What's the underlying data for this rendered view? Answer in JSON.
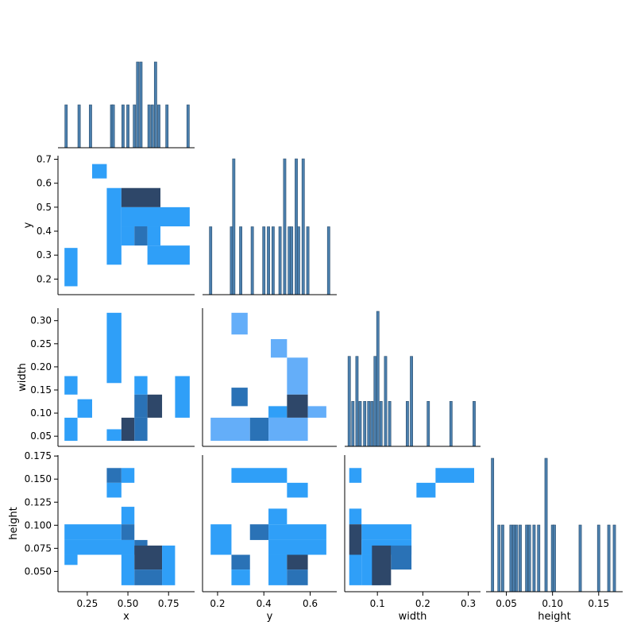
{
  "chart_data": {
    "type": "pairgrid",
    "layout": "corner",
    "variables": [
      "x",
      "y",
      "width",
      "height"
    ],
    "colors": {
      "hist_bar": "#4b7fad",
      "hist_edge": "#2d4f6e",
      "bin_light": "#64aef9",
      "bin_mid": "#2f9ff8",
      "bin_dark": "#2a72b6",
      "bin_darkest": "#2e4769"
    },
    "axis_labels": {
      "x": "x",
      "y": "y",
      "width": "width",
      "height": "height"
    },
    "ticks": {
      "x": {
        "values": [
          0.25,
          0.5,
          0.75
        ],
        "labels": [
          "0.25",
          "0.50",
          "0.75"
        ]
      },
      "y": {
        "values": [
          0.2,
          0.3,
          0.4,
          0.5,
          0.6,
          0.7
        ],
        "labels": [
          "0.2",
          "0.3",
          "0.4",
          "0.5",
          "0.6",
          "0.7"
        ],
        "x_values": [
          0.2,
          0.4,
          0.6
        ],
        "x_labels": [
          "0.2",
          "0.4",
          "0.6"
        ]
      },
      "width": {
        "values": [
          0.05,
          0.1,
          0.15,
          0.2,
          0.25,
          0.3
        ],
        "labels": [
          "0.05",
          "0.10",
          "0.15",
          "0.20",
          "0.25",
          "0.30"
        ],
        "x_values": [
          0.1,
          0.2,
          0.3
        ],
        "x_labels": [
          "0.1",
          "0.2",
          "0.3"
        ]
      },
      "height": {
        "values": [
          0.05,
          0.075,
          0.1,
          0.125,
          0.15,
          0.175
        ],
        "labels": [
          "0.050",
          "0.075",
          "0.100",
          "0.125",
          "0.150",
          "0.175"
        ],
        "x_values": [
          0.05,
          0.1,
          0.15
        ],
        "x_labels": [
          "0.05",
          "0.10",
          "0.15"
        ]
      }
    },
    "ranges": {
      "x": [
        0.07,
        0.91
      ],
      "y": [
        0.135,
        0.715
      ],
      "width": [
        0.028,
        0.327
      ],
      "height": [
        0.028,
        0.176
      ]
    },
    "diagonal_histograms": {
      "x": [
        {
          "x": 0.12,
          "count": 1
        },
        {
          "x": 0.2,
          "count": 1
        },
        {
          "x": 0.27,
          "count": 1
        },
        {
          "x": 0.4,
          "count": 1
        },
        {
          "x": 0.41,
          "count": 1
        },
        {
          "x": 0.47,
          "count": 1
        },
        {
          "x": 0.5,
          "count": 1
        },
        {
          "x": 0.54,
          "count": 1
        },
        {
          "x": 0.56,
          "count": 2
        },
        {
          "x": 0.58,
          "count": 2
        },
        {
          "x": 0.63,
          "count": 1
        },
        {
          "x": 0.65,
          "count": 1
        },
        {
          "x": 0.67,
          "count": 2
        },
        {
          "x": 0.69,
          "count": 1
        },
        {
          "x": 0.74,
          "count": 1
        },
        {
          "x": 0.87,
          "count": 1
        }
      ],
      "y": [
        {
          "x": 0.17,
          "count": 1
        },
        {
          "x": 0.26,
          "count": 1
        },
        {
          "x": 0.27,
          "count": 2
        },
        {
          "x": 0.3,
          "count": 1
        },
        {
          "x": 0.35,
          "count": 1
        },
        {
          "x": 0.4,
          "count": 1
        },
        {
          "x": 0.42,
          "count": 1
        },
        {
          "x": 0.44,
          "count": 1
        },
        {
          "x": 0.47,
          "count": 1
        },
        {
          "x": 0.49,
          "count": 2
        },
        {
          "x": 0.51,
          "count": 1
        },
        {
          "x": 0.52,
          "count": 1
        },
        {
          "x": 0.54,
          "count": 2
        },
        {
          "x": 0.55,
          "count": 1
        },
        {
          "x": 0.57,
          "count": 2
        },
        {
          "x": 0.59,
          "count": 1
        },
        {
          "x": 0.68,
          "count": 1
        }
      ],
      "width": [
        {
          "x": 0.038,
          "count": 2
        },
        {
          "x": 0.046,
          "count": 1
        },
        {
          "x": 0.055,
          "count": 2
        },
        {
          "x": 0.062,
          "count": 1
        },
        {
          "x": 0.072,
          "count": 1
        },
        {
          "x": 0.081,
          "count": 1
        },
        {
          "x": 0.088,
          "count": 1
        },
        {
          "x": 0.095,
          "count": 2
        },
        {
          "x": 0.101,
          "count": 3
        },
        {
          "x": 0.108,
          "count": 1
        },
        {
          "x": 0.118,
          "count": 2
        },
        {
          "x": 0.127,
          "count": 1
        },
        {
          "x": 0.166,
          "count": 1
        },
        {
          "x": 0.175,
          "count": 2
        },
        {
          "x": 0.212,
          "count": 1
        },
        {
          "x": 0.262,
          "count": 1
        },
        {
          "x": 0.313,
          "count": 1
        }
      ],
      "height": [
        {
          "x": 0.035,
          "count": 2
        },
        {
          "x": 0.042,
          "count": 1
        },
        {
          "x": 0.046,
          "count": 1
        },
        {
          "x": 0.055,
          "count": 1
        },
        {
          "x": 0.058,
          "count": 1
        },
        {
          "x": 0.061,
          "count": 1
        },
        {
          "x": 0.065,
          "count": 1
        },
        {
          "x": 0.072,
          "count": 1
        },
        {
          "x": 0.075,
          "count": 1
        },
        {
          "x": 0.08,
          "count": 1
        },
        {
          "x": 0.085,
          "count": 1
        },
        {
          "x": 0.093,
          "count": 2
        },
        {
          "x": 0.1,
          "count": 1
        },
        {
          "x": 0.102,
          "count": 1
        },
        {
          "x": 0.13,
          "count": 1
        },
        {
          "x": 0.15,
          "count": 1
        },
        {
          "x": 0.161,
          "count": 1
        },
        {
          "x": 0.167,
          "count": 1
        }
      ]
    },
    "bivariate_histograms": [
      {
        "x_var": "x",
        "y_var": "y",
        "cells": [
          {
            "x0": 0.11,
            "x1": 0.19,
            "y0": 0.17,
            "y1": 0.33,
            "level": "mid"
          },
          {
            "x0": 0.28,
            "x1": 0.37,
            "y0": 0.62,
            "y1": 0.68,
            "level": "mid"
          },
          {
            "x0": 0.37,
            "x1": 0.46,
            "y0": 0.26,
            "y1": 0.58,
            "level": "mid"
          },
          {
            "x0": 0.46,
            "x1": 0.7,
            "y0": 0.5,
            "y1": 0.58,
            "level": "darkest"
          },
          {
            "x0": 0.46,
            "x1": 0.88,
            "y0": 0.42,
            "y1": 0.5,
            "level": "mid"
          },
          {
            "x0": 0.46,
            "x1": 0.54,
            "y0": 0.34,
            "y1": 0.42,
            "level": "mid"
          },
          {
            "x0": 0.54,
            "x1": 0.62,
            "y0": 0.34,
            "y1": 0.42,
            "level": "dark"
          },
          {
            "x0": 0.62,
            "x1": 0.7,
            "y0": 0.34,
            "y1": 0.42,
            "level": "mid"
          },
          {
            "x0": 0.62,
            "x1": 0.88,
            "y0": 0.26,
            "y1": 0.34,
            "level": "mid"
          }
        ]
      },
      {
        "x_var": "x",
        "y_var": "width",
        "cells": [
          {
            "x0": 0.37,
            "x1": 0.46,
            "y0": 0.165,
            "y1": 0.317,
            "level": "mid"
          },
          {
            "x0": 0.11,
            "x1": 0.19,
            "y0": 0.14,
            "y1": 0.18,
            "level": "mid"
          },
          {
            "x0": 0.54,
            "x1": 0.62,
            "y0": 0.14,
            "y1": 0.18,
            "level": "mid"
          },
          {
            "x0": 0.79,
            "x1": 0.88,
            "y0": 0.09,
            "y1": 0.18,
            "level": "mid"
          },
          {
            "x0": 0.19,
            "x1": 0.28,
            "y0": 0.09,
            "y1": 0.13,
            "level": "mid"
          },
          {
            "x0": 0.54,
            "x1": 0.62,
            "y0": 0.09,
            "y1": 0.14,
            "level": "dark"
          },
          {
            "x0": 0.62,
            "x1": 0.71,
            "y0": 0.09,
            "y1": 0.14,
            "level": "darkest"
          },
          {
            "x0": 0.11,
            "x1": 0.19,
            "y0": 0.04,
            "y1": 0.09,
            "level": "mid"
          },
          {
            "x0": 0.37,
            "x1": 0.46,
            "y0": 0.04,
            "y1": 0.065,
            "level": "mid"
          },
          {
            "x0": 0.46,
            "x1": 0.54,
            "y0": 0.04,
            "y1": 0.09,
            "level": "darkest"
          },
          {
            "x0": 0.54,
            "x1": 0.62,
            "y0": 0.04,
            "y1": 0.09,
            "level": "dark"
          }
        ]
      },
      {
        "x_var": "y",
        "y_var": "width",
        "cells": [
          {
            "x0": 0.26,
            "x1": 0.33,
            "y0": 0.27,
            "y1": 0.317,
            "level": "light"
          },
          {
            "x0": 0.43,
            "x1": 0.5,
            "y0": 0.22,
            "y1": 0.26,
            "level": "light"
          },
          {
            "x0": 0.5,
            "x1": 0.59,
            "y0": 0.14,
            "y1": 0.22,
            "level": "light"
          },
          {
            "x0": 0.26,
            "x1": 0.33,
            "y0": 0.115,
            "y1": 0.155,
            "level": "dark"
          },
          {
            "x0": 0.42,
            "x1": 0.5,
            "y0": 0.09,
            "y1": 0.115,
            "level": "mid"
          },
          {
            "x0": 0.5,
            "x1": 0.59,
            "y0": 0.09,
            "y1": 0.14,
            "level": "darkest"
          },
          {
            "x0": 0.59,
            "x1": 0.67,
            "y0": 0.09,
            "y1": 0.115,
            "level": "light"
          },
          {
            "x0": 0.17,
            "x1": 0.34,
            "y0": 0.04,
            "y1": 0.09,
            "level": "light"
          },
          {
            "x0": 0.34,
            "x1": 0.42,
            "y0": 0.04,
            "y1": 0.09,
            "level": "dark"
          },
          {
            "x0": 0.42,
            "x1": 0.59,
            "y0": 0.04,
            "y1": 0.09,
            "level": "light"
          }
        ]
      },
      {
        "x_var": "x",
        "y_var": "height",
        "cells": [
          {
            "x0": 0.37,
            "x1": 0.46,
            "y0": 0.146,
            "y1": 0.162,
            "level": "dark"
          },
          {
            "x0": 0.46,
            "x1": 0.54,
            "y0": 0.146,
            "y1": 0.162,
            "level": "mid"
          },
          {
            "x0": 0.37,
            "x1": 0.46,
            "y0": 0.13,
            "y1": 0.146,
            "level": "mid"
          },
          {
            "x0": 0.46,
            "x1": 0.54,
            "y0": 0.101,
            "y1": 0.12,
            "level": "mid"
          },
          {
            "x0": 0.11,
            "x1": 0.46,
            "y0": 0.084,
            "y1": 0.101,
            "level": "mid"
          },
          {
            "x0": 0.46,
            "x1": 0.54,
            "y0": 0.084,
            "y1": 0.101,
            "level": "dark"
          },
          {
            "x0": 0.11,
            "x1": 0.54,
            "y0": 0.068,
            "y1": 0.084,
            "level": "mid"
          },
          {
            "x0": 0.54,
            "x1": 0.62,
            "y0": 0.068,
            "y1": 0.084,
            "level": "dark"
          },
          {
            "x0": 0.11,
            "x1": 0.19,
            "y0": 0.057,
            "y1": 0.068,
            "level": "mid"
          },
          {
            "x0": 0.46,
            "x1": 0.54,
            "y0": 0.035,
            "y1": 0.068,
            "level": "mid"
          },
          {
            "x0": 0.54,
            "x1": 0.71,
            "y0": 0.052,
            "y1": 0.078,
            "level": "darkest"
          },
          {
            "x0": 0.54,
            "x1": 0.71,
            "y0": 0.035,
            "y1": 0.052,
            "level": "dark"
          },
          {
            "x0": 0.71,
            "x1": 0.79,
            "y0": 0.035,
            "y1": 0.078,
            "level": "mid"
          }
        ]
      },
      {
        "x_var": "y",
        "y_var": "height",
        "cells": [
          {
            "x0": 0.26,
            "x1": 0.5,
            "y0": 0.146,
            "y1": 0.162,
            "level": "mid"
          },
          {
            "x0": 0.5,
            "x1": 0.59,
            "y0": 0.13,
            "y1": 0.146,
            "level": "mid"
          },
          {
            "x0": 0.42,
            "x1": 0.5,
            "y0": 0.101,
            "y1": 0.118,
            "level": "mid"
          },
          {
            "x0": 0.17,
            "x1": 0.26,
            "y0": 0.068,
            "y1": 0.101,
            "level": "mid"
          },
          {
            "x0": 0.34,
            "x1": 0.42,
            "y0": 0.084,
            "y1": 0.101,
            "level": "dark"
          },
          {
            "x0": 0.42,
            "x1": 0.67,
            "y0": 0.084,
            "y1": 0.101,
            "level": "mid"
          },
          {
            "x0": 0.26,
            "x1": 0.34,
            "y0": 0.052,
            "y1": 0.068,
            "level": "dark"
          },
          {
            "x0": 0.26,
            "x1": 0.34,
            "y0": 0.035,
            "y1": 0.052,
            "level": "mid"
          },
          {
            "x0": 0.42,
            "x1": 0.5,
            "y0": 0.035,
            "y1": 0.068,
            "level": "mid"
          },
          {
            "x0": 0.5,
            "x1": 0.59,
            "y0": 0.052,
            "y1": 0.078,
            "level": "darkest"
          },
          {
            "x0": 0.5,
            "x1": 0.59,
            "y0": 0.035,
            "y1": 0.052,
            "level": "dark"
          },
          {
            "x0": 0.42,
            "x1": 0.67,
            "y0": 0.068,
            "y1": 0.084,
            "level": "mid"
          }
        ]
      },
      {
        "x_var": "width",
        "y_var": "height",
        "cells": [
          {
            "x0": 0.228,
            "x1": 0.313,
            "y0": 0.146,
            "y1": 0.162,
            "level": "mid"
          },
          {
            "x0": 0.038,
            "x1": 0.065,
            "y0": 0.146,
            "y1": 0.162,
            "level": "mid"
          },
          {
            "x0": 0.186,
            "x1": 0.228,
            "y0": 0.13,
            "y1": 0.146,
            "level": "mid"
          },
          {
            "x0": 0.038,
            "x1": 0.065,
            "y0": 0.101,
            "y1": 0.118,
            "level": "mid"
          },
          {
            "x0": 0.065,
            "x1": 0.175,
            "y0": 0.084,
            "y1": 0.101,
            "level": "mid"
          },
          {
            "x0": 0.038,
            "x1": 0.065,
            "y0": 0.068,
            "y1": 0.101,
            "level": "darkest"
          },
          {
            "x0": 0.065,
            "x1": 0.175,
            "y0": 0.068,
            "y1": 0.084,
            "level": "mid"
          },
          {
            "x0": 0.038,
            "x1": 0.065,
            "y0": 0.035,
            "y1": 0.068,
            "level": "mid"
          },
          {
            "x0": 0.065,
            "x1": 0.107,
            "y0": 0.035,
            "y1": 0.068,
            "level": "mid"
          },
          {
            "x0": 0.088,
            "x1": 0.13,
            "y0": 0.035,
            "y1": 0.078,
            "level": "darkest"
          },
          {
            "x0": 0.13,
            "x1": 0.175,
            "y0": 0.052,
            "y1": 0.078,
            "level": "dark"
          }
        ]
      }
    ]
  }
}
